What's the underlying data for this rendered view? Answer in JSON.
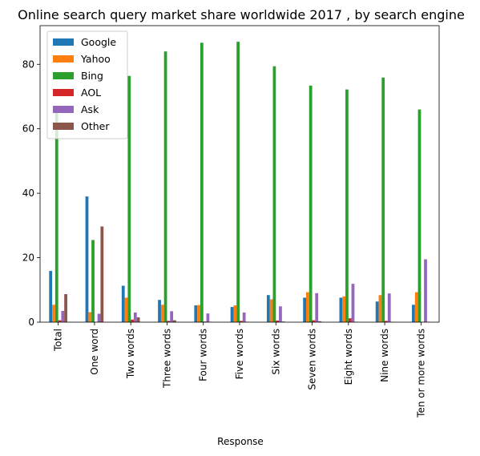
{
  "chart_data": {
    "type": "bar",
    "title": "Online search query market share worldwide 2017 , by search engine",
    "xlabel": "Response",
    "ylabel": "",
    "ylim": [
      0,
      92
    ],
    "yticks": [
      0,
      20,
      40,
      60,
      80
    ],
    "grid": false,
    "legend_position": "top-left",
    "categories": [
      "Total",
      "One word",
      "Two words",
      "Three words",
      "Four words",
      "Five words",
      "Six words",
      "Seven words",
      "Eight words",
      "Nine words",
      "Ten or more words"
    ],
    "series": [
      {
        "name": "Google",
        "color": "#1f77b4",
        "values": [
          15.9,
          39.0,
          11.3,
          6.9,
          5.2,
          4.7,
          8.4,
          7.6,
          7.6,
          6.4,
          5.4
        ]
      },
      {
        "name": "Yahoo",
        "color": "#ff7f0e",
        "values": [
          5.4,
          3.1,
          7.6,
          5.4,
          5.3,
          5.2,
          7.1,
          9.3,
          8.0,
          8.4,
          9.3
        ]
      },
      {
        "name": "Bing",
        "color": "#2ca02c",
        "values": [
          65.0,
          25.5,
          76.4,
          84.0,
          86.7,
          87.0,
          79.4,
          73.4,
          72.2,
          75.9,
          66.0
        ]
      },
      {
        "name": "AOL",
        "color": "#d62728",
        "values": [
          0.6,
          0.1,
          0.8,
          0.4,
          0.2,
          0.4,
          0.5,
          0.6,
          1.2,
          0.4,
          0.1
        ]
      },
      {
        "name": "Ask",
        "color": "#9467bd",
        "values": [
          3.5,
          2.6,
          3.0,
          3.4,
          2.7,
          3.0,
          4.9,
          9.0,
          11.9,
          8.9,
          19.5
        ]
      },
      {
        "name": "Other",
        "color": "#8c564b",
        "values": [
          8.7,
          29.7,
          1.5,
          0.6,
          0.1,
          0.1,
          0.2,
          0.3,
          0.1,
          0.1,
          0.1
        ]
      }
    ]
  }
}
